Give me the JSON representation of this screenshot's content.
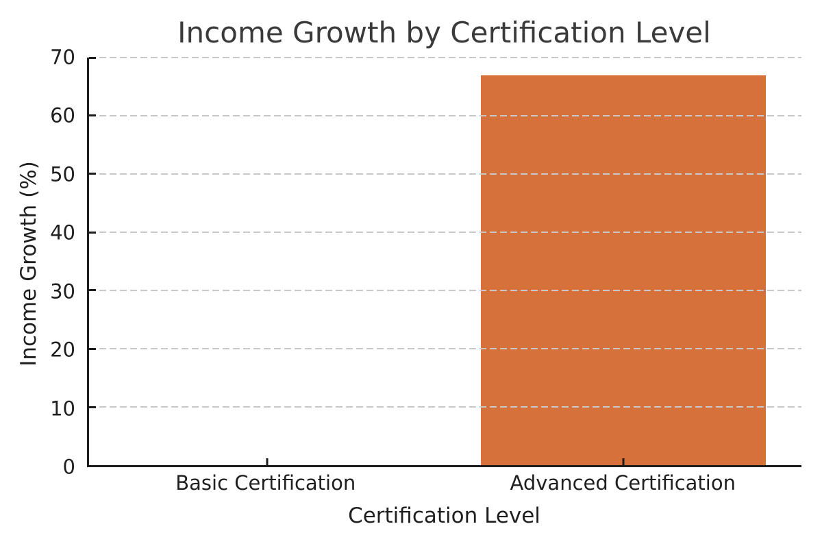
{
  "chart_data": {
    "type": "bar",
    "title": "Income Growth by Certification Level",
    "xlabel": "Certification Level",
    "ylabel": "Income Growth (%)",
    "categories": [
      "Basic Certification",
      "Advanced Certification"
    ],
    "values": [
      0,
      67
    ],
    "ylim": [
      0,
      70
    ],
    "yticks": [
      0,
      10,
      20,
      30,
      40,
      50,
      60,
      70
    ],
    "bar_color": "#d6713c",
    "bar_width_fraction": 0.8,
    "grid": "horizontal-dashed",
    "grid_color": "#c8c8c8",
    "grid_above_bars": true,
    "spine_color": "#1c1c1c",
    "spines": [
      "left",
      "bottom"
    ],
    "tick_direction": "in",
    "text_color": "#1f1f1f",
    "title_color": "#3a3a3a",
    "legend": "none"
  }
}
